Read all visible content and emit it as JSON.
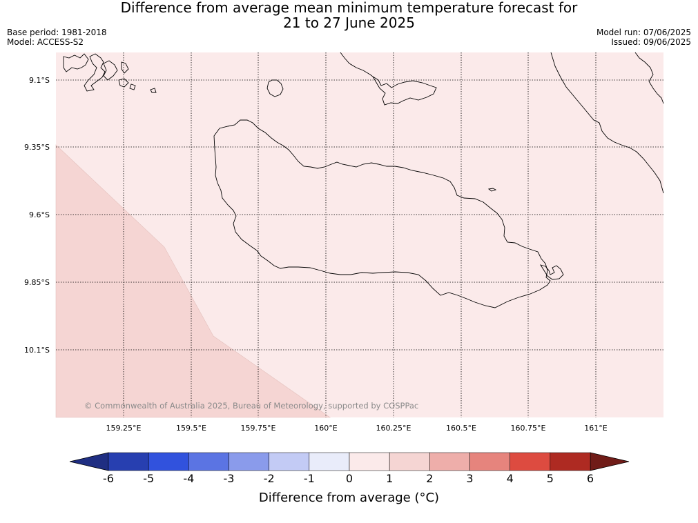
{
  "title": {
    "line1": "Difference from average mean minimum temperature forecast for",
    "line2": "21 to 27 June 2025"
  },
  "meta_left": {
    "base_period": "Base period: 1981-2018",
    "model": "Model: ACCESS-S2"
  },
  "meta_right": {
    "model_run": "Model run: 07/06/2025",
    "issued": "Issued: 09/06/2025"
  },
  "map": {
    "lat_labels": [
      "9.1°S",
      "9.35°S",
      "9.6°S",
      "9.85°S",
      "10.1°S"
    ],
    "lon_labels": [
      "159.25°E",
      "159.5°E",
      "159.75°E",
      "160°E",
      "160.25°E",
      "160.5°E",
      "160.75°E",
      "161°E"
    ],
    "copyright": "© Commonwealth of Australia 2025, Bureau of Meteorology, supported by COSPPac",
    "fill_colors": {
      "band_0_to_1": "#fbeaea",
      "band_1_to_2": "#f5d5d3"
    }
  },
  "colorbar": {
    "label": "Difference from average (°C)",
    "ticks": [
      "-6",
      "-5",
      "-4",
      "-3",
      "-2",
      "-1",
      "0",
      "1",
      "2",
      "3",
      "4",
      "5",
      "6"
    ],
    "colors": [
      "#1f2e82",
      "#273fb0",
      "#3152dd",
      "#5b74e3",
      "#8a9beb",
      "#c3cbf5",
      "#e9ecfa",
      "#fbeaea",
      "#f5d5d3",
      "#eeaeaa",
      "#e6847d",
      "#dd4b40",
      "#ae2a22",
      "#701c18"
    ]
  }
}
